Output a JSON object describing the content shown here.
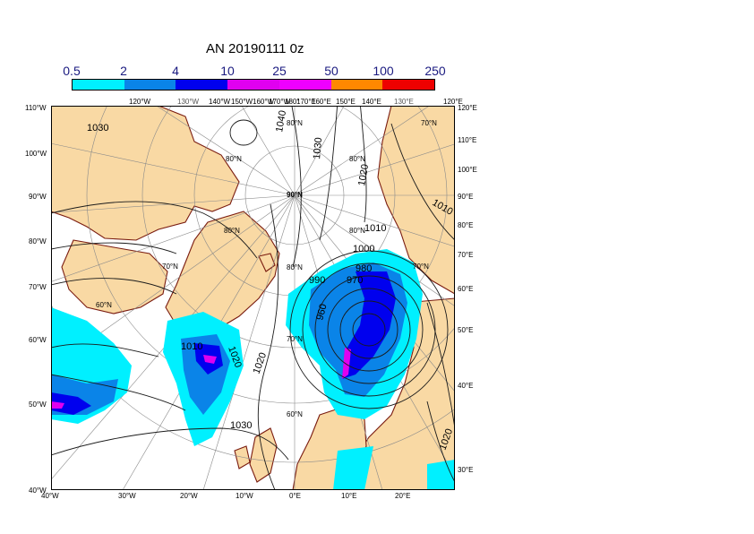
{
  "title": "AN  20190111 0z",
  "colorbar": {
    "labels": [
      "0.5",
      "2",
      "4",
      "10",
      "25",
      "50",
      "100",
      "250"
    ],
    "colors": [
      "#00f0ff",
      "#0a84e8",
      "#0000ee",
      "#e000f0",
      "#ee00ff",
      "#ff8800",
      "#ee0000"
    ]
  },
  "map": {
    "top_labels": [
      "120°W",
      "130°W",
      "140°W",
      "150°W",
      "160°W",
      "170°W",
      "180°",
      "170°E",
      "160°E",
      "150°E",
      "140°E",
      "130°E",
      "120°E"
    ],
    "left_labels": [
      "110°W",
      "100°W",
      "90°W",
      "80°W",
      "70°W",
      "60°W",
      "50°W",
      "40°W"
    ],
    "right_labels": [
      "120°E",
      "110°E",
      "100°E",
      "90°E",
      "80°E",
      "70°E",
      "60°E",
      "50°E",
      "40°E",
      "30°E"
    ],
    "bottom_labels": [
      "40°W",
      "30°W",
      "20°W",
      "10°W",
      "0°E",
      "10°E",
      "20°E"
    ],
    "lat_labels": [
      "80°N",
      "70°N",
      "60°N",
      "90°N"
    ],
    "isobar_labels": [
      "1030",
      "1040",
      "1030",
      "1020",
      "1010",
      "1010",
      "1000",
      "980",
      "990",
      "970",
      "960",
      "1010",
      "1020",
      "1020",
      "1030",
      "1020"
    ]
  }
}
